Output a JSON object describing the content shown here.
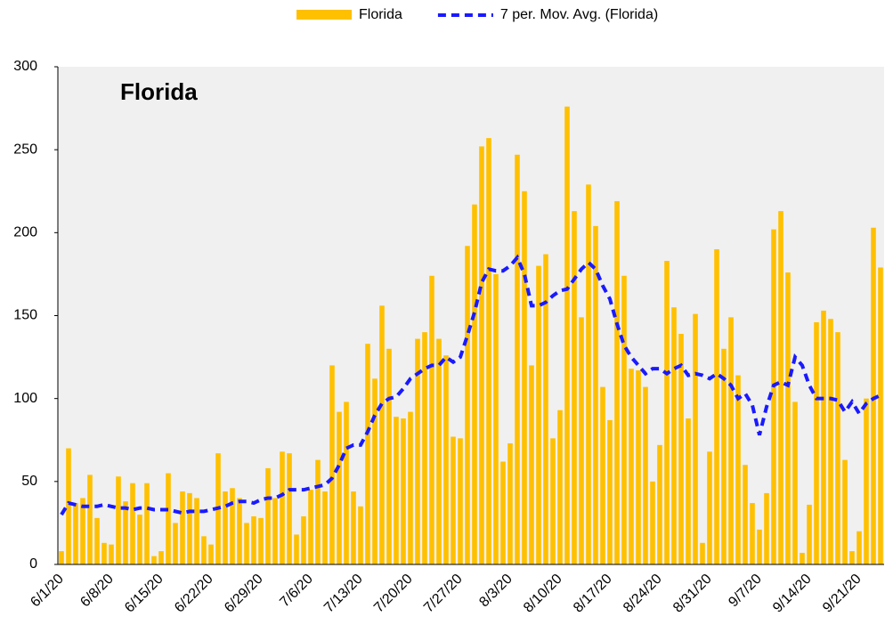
{
  "chart_data": {
    "type": "bar",
    "title": "Florida",
    "categories": [
      "6/1/20",
      null,
      null,
      null,
      null,
      null,
      null,
      "6/8/20",
      null,
      null,
      null,
      null,
      null,
      null,
      "6/15/20",
      null,
      null,
      null,
      null,
      null,
      null,
      "6/22/20",
      null,
      null,
      null,
      null,
      null,
      null,
      "6/29/20",
      null,
      null,
      null,
      null,
      null,
      null,
      "7/6/20",
      null,
      null,
      null,
      null,
      null,
      null,
      "7/13/20",
      null,
      null,
      null,
      null,
      null,
      null,
      "7/20/20",
      null,
      null,
      null,
      null,
      null,
      null,
      "7/27/20",
      null,
      null,
      null,
      null,
      null,
      null,
      "8/3/20",
      null,
      null,
      null,
      null,
      null,
      null,
      "8/10/20",
      null,
      null,
      null,
      null,
      null,
      null,
      "8/17/20",
      null,
      null,
      null,
      null,
      null,
      null,
      "8/24/20",
      null,
      null,
      null,
      null,
      null,
      null,
      "8/31/20",
      null,
      null,
      null,
      null,
      null,
      null,
      "9/7/20",
      null,
      null,
      null,
      null,
      null,
      null,
      "9/14/20",
      null,
      null,
      null,
      null,
      null,
      null,
      "9/21/20",
      null,
      null,
      null
    ],
    "series": [
      {
        "name": "Florida",
        "type": "bar",
        "color": "#ffc000",
        "values": [
          8,
          70,
          37,
          40,
          54,
          28,
          13,
          12,
          53,
          38,
          49,
          30,
          49,
          5,
          8,
          55,
          25,
          44,
          43,
          40,
          17,
          12,
          67,
          44,
          46,
          40,
          25,
          29,
          28,
          58,
          40,
          68,
          67,
          18,
          29,
          45,
          63,
          44,
          120,
          92,
          98,
          44,
          35,
          133,
          112,
          156,
          130,
          89,
          88,
          92,
          136,
          140,
          174,
          136,
          126,
          77,
          76,
          192,
          217,
          252,
          257,
          175,
          62,
          73,
          247,
          225,
          120,
          180,
          187,
          76,
          93,
          276,
          213,
          149,
          229,
          204,
          107,
          87,
          219,
          174,
          118,
          117,
          107,
          50,
          72,
          183,
          155,
          139,
          88,
          151,
          13,
          68,
          190,
          130,
          149,
          114,
          60,
          37,
          21,
          43,
          202,
          213,
          176,
          98,
          7,
          36,
          146,
          153,
          148,
          140,
          63,
          8,
          20,
          100,
          203,
          179
        ]
      },
      {
        "name": "7 per. Mov. Avg. (Florida)",
        "type": "line",
        "dashed": true,
        "color": "#1a1aff",
        "values": [
          30,
          37,
          36,
          35,
          35,
          35,
          36,
          35,
          34,
          34,
          33,
          34,
          34,
          33,
          33,
          33,
          32,
          31,
          32,
          32,
          32,
          33,
          34,
          35,
          37,
          38,
          38,
          37,
          39,
          40,
          40,
          42,
          45,
          45,
          45,
          46,
          47,
          48,
          52,
          60,
          70,
          72,
          72,
          80,
          90,
          97,
          100,
          101,
          106,
          112,
          115,
          118,
          120,
          120,
          125,
          122,
          125,
          138,
          152,
          170,
          178,
          177,
          177,
          180,
          185,
          175,
          156,
          156,
          158,
          162,
          165,
          166,
          172,
          178,
          182,
          178,
          168,
          160,
          145,
          132,
          125,
          120,
          115,
          118,
          118,
          115,
          118,
          120,
          114,
          115,
          114,
          112,
          115,
          112,
          108,
          100,
          103,
          96,
          78,
          95,
          108,
          110,
          108,
          125,
          120,
          108,
          100,
          100,
          100,
          99,
          92,
          98,
          91,
          97,
          100,
          102
        ]
      }
    ],
    "ylim": [
      0,
      300
    ],
    "yticks": [
      0,
      50,
      100,
      150,
      200,
      250,
      300
    ],
    "grid": false
  }
}
